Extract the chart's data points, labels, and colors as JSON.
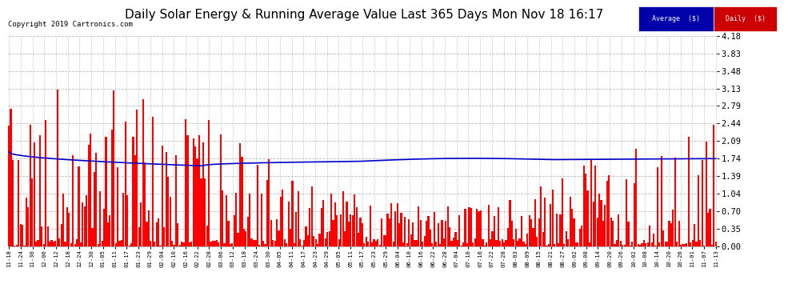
{
  "title": "Daily Solar Energy & Running Average Value Last 365 Days Mon Nov 18 16:17",
  "copyright": "Copyright 2019 Cartronics.com",
  "ylim": [
    0.0,
    4.18
  ],
  "yticks": [
    0.0,
    0.35,
    0.7,
    1.04,
    1.39,
    1.74,
    2.09,
    2.44,
    2.79,
    3.13,
    3.48,
    3.83,
    4.18
  ],
  "bar_color": "#FF0000",
  "avg_line_color": "#0000CC",
  "background_color": "#FFFFFF",
  "grid_color": "#BBBBBB",
  "title_fontsize": 11,
  "legend_avg_bg": "#0000AA",
  "legend_daily_bg": "#CC0000",
  "legend_text_color": "#FFFFFF",
  "n_bars": 365,
  "xtick_labels": [
    "11-18",
    "11-24",
    "11-30",
    "12-06",
    "12-12",
    "12-18",
    "12-24",
    "12-30",
    "01-05",
    "01-11",
    "01-17",
    "01-23",
    "01-29",
    "02-04",
    "02-10",
    "02-16",
    "02-22",
    "02-28",
    "03-06",
    "03-12",
    "03-18",
    "03-24",
    "03-30",
    "04-05",
    "04-11",
    "04-17",
    "04-23",
    "04-29",
    "05-05",
    "05-11",
    "05-17",
    "05-23",
    "05-29",
    "06-04",
    "06-10",
    "06-16",
    "06-22",
    "06-28",
    "07-04",
    "07-10",
    "07-16",
    "07-22",
    "07-28",
    "08-03",
    "08-09",
    "08-15",
    "08-21",
    "08-27",
    "09-02",
    "09-08",
    "09-14",
    "09-20",
    "09-26",
    "10-02",
    "10-08",
    "10-14",
    "10-20",
    "10-26",
    "11-01",
    "11-07",
    "11-13"
  ]
}
